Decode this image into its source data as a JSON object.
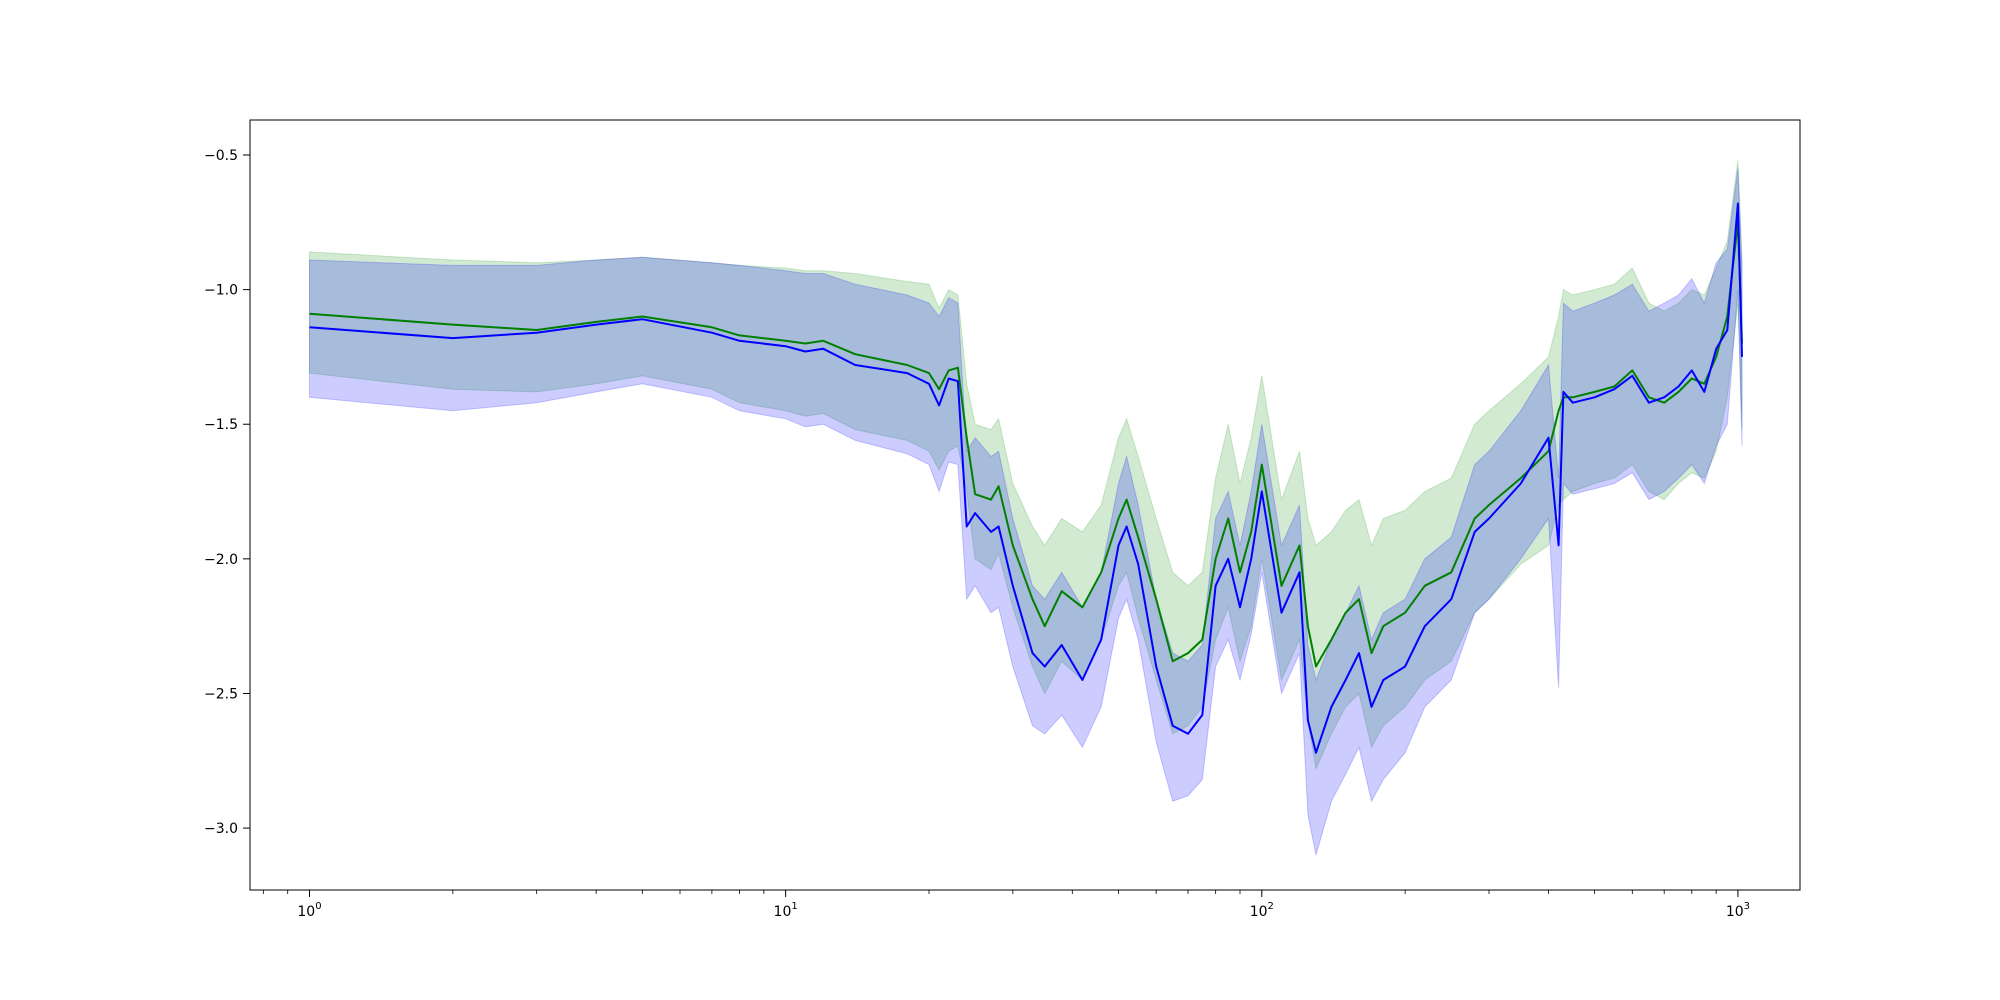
{
  "chart_data": {
    "type": "line",
    "x_scale": "log",
    "xlim": [
      0.75,
      1350
    ],
    "ylim": [
      -3.23,
      -0.37
    ],
    "grid": false,
    "legend": "none",
    "x_ticks": [
      {
        "value": 1,
        "base": "10",
        "exp": "0"
      },
      {
        "value": 10,
        "base": "10",
        "exp": "1"
      },
      {
        "value": 100,
        "base": "10",
        "exp": "2"
      },
      {
        "value": 1000,
        "base": "10",
        "exp": "3"
      }
    ],
    "y_ticks": [
      {
        "value": -0.5,
        "label": "−0.5"
      },
      {
        "value": -1.0,
        "label": "−1.0"
      },
      {
        "value": -1.5,
        "label": "−1.5"
      },
      {
        "value": -2.0,
        "label": "−2.0"
      },
      {
        "value": -2.5,
        "label": "−2.5"
      },
      {
        "value": -3.0,
        "label": "−3.0"
      }
    ],
    "series": [
      {
        "color": "#008000",
        "band_color": "#2ca02c",
        "band_opacity": 0.22,
        "x": [
          1,
          2,
          3,
          4,
          5,
          7,
          8,
          10,
          11,
          12,
          14,
          18,
          20,
          21,
          22,
          23,
          24,
          25,
          27,
          28,
          30,
          33,
          35,
          38,
          42,
          46,
          50,
          52,
          55,
          60,
          65,
          70,
          75,
          80,
          85,
          90,
          95,
          100,
          110,
          120,
          125,
          130,
          140,
          150,
          160,
          170,
          180,
          200,
          220,
          250,
          280,
          300,
          350,
          400,
          420,
          430,
          450,
          500,
          550,
          600,
          650,
          700,
          750,
          800,
          850,
          900,
          950,
          1000,
          1020
        ],
        "y": [
          -1.09,
          -1.13,
          -1.15,
          -1.12,
          -1.1,
          -1.14,
          -1.17,
          -1.19,
          -1.2,
          -1.19,
          -1.24,
          -1.28,
          -1.31,
          -1.37,
          -1.3,
          -1.29,
          -1.55,
          -1.76,
          -1.78,
          -1.73,
          -1.95,
          -2.15,
          -2.25,
          -2.12,
          -2.18,
          -2.05,
          -1.85,
          -1.78,
          -1.92,
          -2.15,
          -2.38,
          -2.35,
          -2.3,
          -2.0,
          -1.85,
          -2.05,
          -1.9,
          -1.65,
          -2.1,
          -1.95,
          -2.25,
          -2.4,
          -2.3,
          -2.2,
          -2.15,
          -2.35,
          -2.25,
          -2.2,
          -2.1,
          -2.05,
          -1.85,
          -1.8,
          -1.7,
          -1.6,
          -1.45,
          -1.4,
          -1.4,
          -1.38,
          -1.36,
          -1.3,
          -1.4,
          -1.42,
          -1.38,
          -1.33,
          -1.35,
          -1.25,
          -1.1,
          -0.75,
          -1.2
        ],
        "upper": [
          -0.86,
          -0.89,
          -0.9,
          -0.89,
          -0.88,
          -0.9,
          -0.91,
          -0.92,
          -0.93,
          -0.93,
          -0.94,
          -0.97,
          -0.98,
          -1.07,
          -1.0,
          -1.02,
          -1.35,
          -1.5,
          -1.52,
          -1.48,
          -1.72,
          -1.88,
          -1.95,
          -1.85,
          -1.9,
          -1.8,
          -1.55,
          -1.48,
          -1.62,
          -1.85,
          -2.05,
          -2.1,
          -2.05,
          -1.7,
          -1.5,
          -1.72,
          -1.55,
          -1.32,
          -1.78,
          -1.6,
          -1.85,
          -1.95,
          -1.9,
          -1.82,
          -1.78,
          -1.95,
          -1.85,
          -1.82,
          -1.75,
          -1.7,
          -1.5,
          -1.45,
          -1.35,
          -1.25,
          -1.1,
          -1.0,
          -1.02,
          -1.0,
          -0.98,
          -0.92,
          -1.05,
          -1.08,
          -1.05,
          -1.0,
          -1.02,
          -0.92,
          -0.82,
          -0.52,
          -0.88
        ],
        "lower": [
          -1.31,
          -1.37,
          -1.38,
          -1.35,
          -1.32,
          -1.37,
          -1.42,
          -1.45,
          -1.47,
          -1.46,
          -1.52,
          -1.56,
          -1.6,
          -1.67,
          -1.6,
          -1.58,
          -1.75,
          -2.0,
          -2.04,
          -1.98,
          -2.18,
          -2.4,
          -2.5,
          -2.38,
          -2.45,
          -2.3,
          -2.1,
          -2.05,
          -2.22,
          -2.45,
          -2.65,
          -2.62,
          -2.55,
          -2.3,
          -2.18,
          -2.38,
          -2.25,
          -2.0,
          -2.45,
          -2.3,
          -2.6,
          -2.78,
          -2.65,
          -2.55,
          -2.5,
          -2.7,
          -2.62,
          -2.55,
          -2.45,
          -2.38,
          -2.2,
          -2.15,
          -2.02,
          -1.95,
          -1.8,
          -1.78,
          -1.75,
          -1.72,
          -1.7,
          -1.65,
          -1.75,
          -1.78,
          -1.72,
          -1.68,
          -1.7,
          -1.6,
          -1.4,
          -1.05,
          -1.52
        ]
      },
      {
        "color": "#0000ff",
        "band_color": "#0000ff",
        "band_opacity": 0.2,
        "x": [
          1,
          2,
          3,
          4,
          5,
          7,
          8,
          10,
          11,
          12,
          14,
          18,
          20,
          21,
          22,
          23,
          24,
          25,
          27,
          28,
          30,
          33,
          35,
          38,
          42,
          46,
          50,
          52,
          55,
          60,
          65,
          70,
          75,
          80,
          85,
          90,
          95,
          100,
          110,
          120,
          125,
          130,
          140,
          150,
          160,
          170,
          180,
          200,
          220,
          250,
          280,
          300,
          350,
          400,
          420,
          430,
          450,
          500,
          550,
          600,
          650,
          700,
          750,
          800,
          850,
          900,
          950,
          1000,
          1020
        ],
        "y": [
          -1.14,
          -1.18,
          -1.16,
          -1.13,
          -1.11,
          -1.16,
          -1.19,
          -1.21,
          -1.23,
          -1.22,
          -1.28,
          -1.31,
          -1.35,
          -1.43,
          -1.33,
          -1.34,
          -1.88,
          -1.83,
          -1.9,
          -1.88,
          -2.1,
          -2.35,
          -2.4,
          -2.32,
          -2.45,
          -2.3,
          -1.95,
          -1.88,
          -2.02,
          -2.4,
          -2.62,
          -2.65,
          -2.58,
          -2.1,
          -2.0,
          -2.18,
          -2.0,
          -1.75,
          -2.2,
          -2.05,
          -2.6,
          -2.72,
          -2.55,
          -2.45,
          -2.35,
          -2.55,
          -2.45,
          -2.4,
          -2.25,
          -2.15,
          -1.9,
          -1.85,
          -1.72,
          -1.55,
          -1.95,
          -1.38,
          -1.42,
          -1.4,
          -1.37,
          -1.32,
          -1.42,
          -1.4,
          -1.36,
          -1.3,
          -1.38,
          -1.22,
          -1.15,
          -0.68,
          -1.25
        ],
        "upper": [
          -0.89,
          -0.91,
          -0.91,
          -0.89,
          -0.88,
          -0.9,
          -0.91,
          -0.93,
          -0.94,
          -0.94,
          -0.98,
          -1.02,
          -1.05,
          -1.1,
          -1.03,
          -1.05,
          -1.6,
          -1.55,
          -1.62,
          -1.6,
          -1.85,
          -2.1,
          -2.15,
          -2.05,
          -2.18,
          -2.05,
          -1.72,
          -1.62,
          -1.8,
          -2.15,
          -2.35,
          -2.38,
          -2.32,
          -1.85,
          -1.75,
          -1.95,
          -1.75,
          -1.5,
          -1.95,
          -1.8,
          -2.32,
          -2.45,
          -2.3,
          -2.2,
          -2.1,
          -2.3,
          -2.2,
          -2.15,
          -2.0,
          -1.92,
          -1.65,
          -1.6,
          -1.45,
          -1.28,
          -1.7,
          -1.05,
          -1.08,
          -1.05,
          -1.02,
          -0.98,
          -1.08,
          -1.05,
          -1.02,
          -0.96,
          -1.05,
          -0.9,
          -0.85,
          -0.55,
          -0.92
        ],
        "lower": [
          -1.4,
          -1.45,
          -1.42,
          -1.38,
          -1.35,
          -1.4,
          -1.45,
          -1.48,
          -1.51,
          -1.5,
          -1.56,
          -1.61,
          -1.65,
          -1.75,
          -1.64,
          -1.65,
          -2.15,
          -2.1,
          -2.2,
          -2.18,
          -2.4,
          -2.62,
          -2.65,
          -2.58,
          -2.7,
          -2.55,
          -2.22,
          -2.15,
          -2.3,
          -2.68,
          -2.9,
          -2.88,
          -2.82,
          -2.4,
          -2.3,
          -2.45,
          -2.28,
          -2.05,
          -2.5,
          -2.35,
          -2.95,
          -3.1,
          -2.9,
          -2.8,
          -2.7,
          -2.9,
          -2.82,
          -2.72,
          -2.55,
          -2.45,
          -2.2,
          -2.15,
          -2.0,
          -1.85,
          -2.48,
          -1.72,
          -1.76,
          -1.74,
          -1.72,
          -1.68,
          -1.78,
          -1.75,
          -1.7,
          -1.65,
          -1.72,
          -1.58,
          -1.5,
          -1.0,
          -1.58
        ]
      }
    ]
  }
}
